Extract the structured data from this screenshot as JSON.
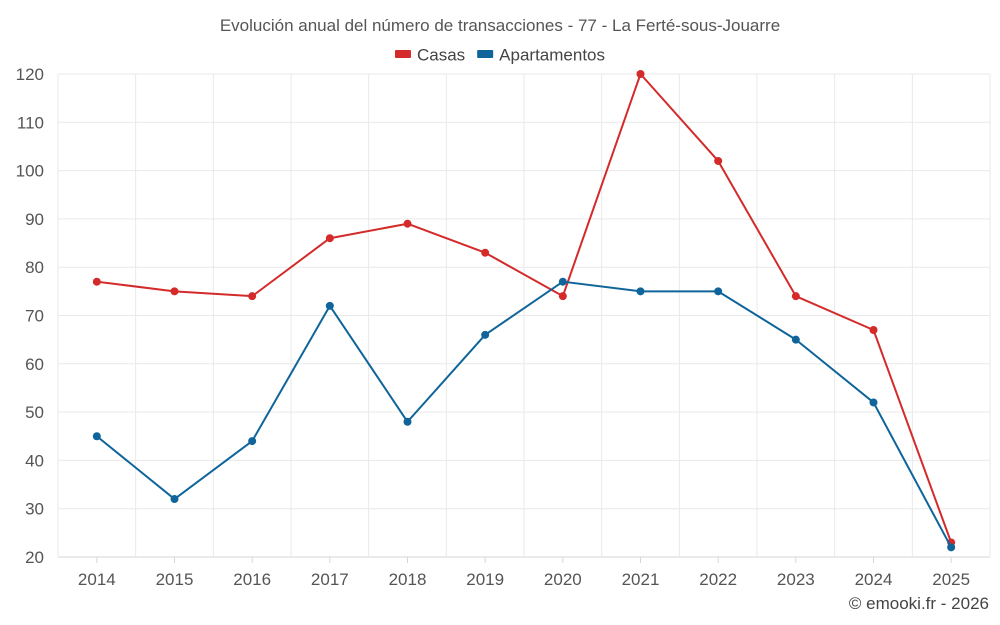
{
  "chart_data": {
    "type": "line",
    "title": "Evolución anual del número de transacciones - 77 - La Ferté-sous-Jouarre",
    "categories": [
      "2014",
      "2015",
      "2016",
      "2017",
      "2018",
      "2019",
      "2020",
      "2021",
      "2022",
      "2023",
      "2024",
      "2025"
    ],
    "series": [
      {
        "name": "Casas",
        "color": "#d42a2a",
        "values": [
          77,
          75,
          74,
          86,
          89,
          83,
          74,
          120,
          102,
          74,
          67,
          23
        ]
      },
      {
        "name": "Apartamentos",
        "color": "#0f659a",
        "values": [
          45,
          32,
          44,
          72,
          48,
          66,
          77,
          75,
          75,
          65,
          52,
          22
        ]
      }
    ],
    "yticks": [
      20,
      30,
      40,
      50,
      60,
      70,
      80,
      90,
      100,
      110,
      120
    ],
    "ylim": [
      20,
      120
    ],
    "xlabel": "",
    "ylabel": "",
    "grid": true,
    "legend_position": "top-center"
  },
  "credit": "© emooki.fr - 2026"
}
